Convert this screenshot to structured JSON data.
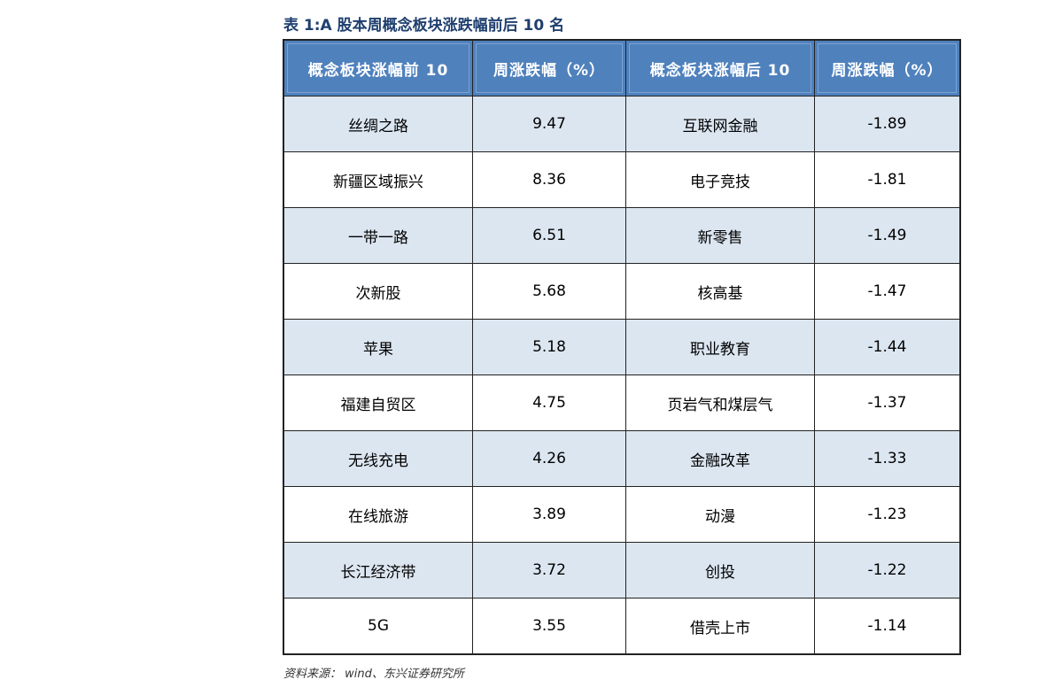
{
  "title": "表 1:A 股本周概念板块涨跌幅前后 10 名",
  "headers": [
    "概念板块涨幅前 10",
    "周涨跌幅（%）",
    "概念板块涨幅后 10",
    "周涨跌幅（%）"
  ],
  "rows": [
    [
      "丝绸之路",
      "9.47",
      "互联网金融",
      "-1.89"
    ],
    [
      "新疆区域振兴",
      "8.36",
      "电子竞技",
      "-1.81"
    ],
    [
      "一带一路",
      "6.51",
      "新零售",
      "-1.49"
    ],
    [
      "次新股",
      "5.68",
      "核高基",
      "-1.47"
    ],
    [
      "苹果",
      "5.18",
      "职业教育",
      "-1.44"
    ],
    [
      "福建自贸区",
      "4.75",
      "页岩气和煤层气",
      "-1.37"
    ],
    [
      "无线充电",
      "4.26",
      "金融改革",
      "-1.33"
    ],
    [
      "在线旅游",
      "3.89",
      "动漫",
      "-1.23"
    ],
    [
      "长江经济带",
      "3.72",
      "创投",
      "-1.22"
    ],
    [
      "5G",
      "3.55",
      "借壳上市",
      "-1.14"
    ]
  ],
  "source": "资料来源：  wind、东兴证券研究所",
  "colors": {
    "header": "#4f81bd",
    "stripe": "#dce6f1",
    "title": "#1f3f6e"
  }
}
